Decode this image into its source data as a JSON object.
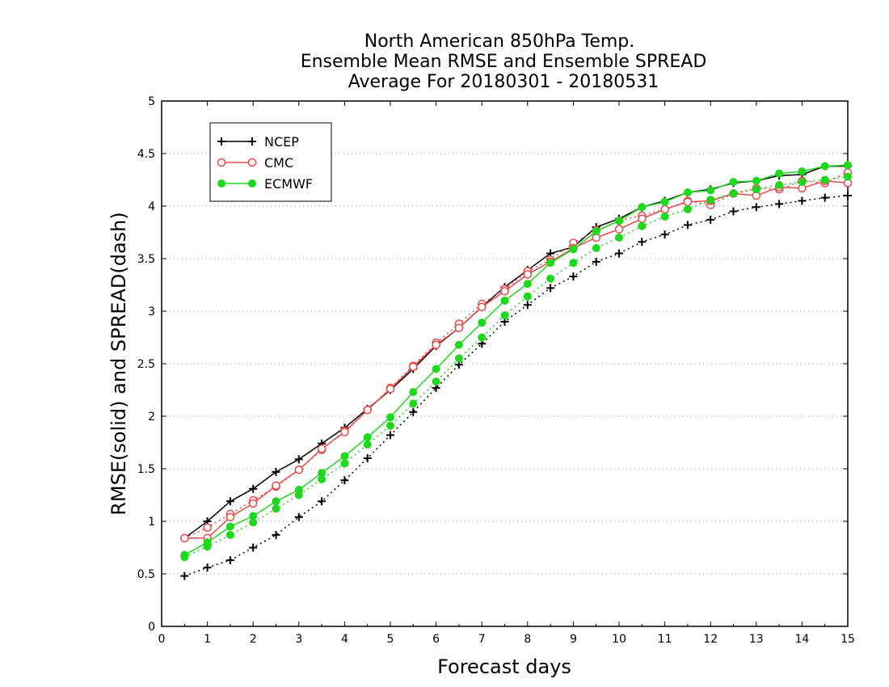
{
  "chart_data": {
    "type": "line",
    "title_lines": [
      "North American 850hPa Temp.",
      "Ensemble Mean RMSE and Ensemble SPREAD",
      "Average For 20180301 - 20180531"
    ],
    "xlabel": "Forecast days",
    "ylabel": "RMSE(solid) and SPREAD(dash)",
    "xlim": [
      0,
      15
    ],
    "ylim": [
      0,
      5
    ],
    "x_ticks": [
      "0",
      "1",
      "2",
      "3",
      "4",
      "5",
      "6",
      "7",
      "8",
      "9",
      "10",
      "11",
      "12",
      "13",
      "14",
      "15"
    ],
    "y_ticks": [
      "0",
      "0.5",
      "1",
      "1.5",
      "2",
      "2.5",
      "3",
      "3.5",
      "4",
      "4.5",
      "5"
    ],
    "grid": "horizontal dotted",
    "legend_position": "top-left",
    "x": [
      0.5,
      1,
      1.5,
      2,
      2.5,
      3,
      3.5,
      4,
      4.5,
      5,
      5.5,
      6,
      6.5,
      7,
      7.5,
      8,
      8.5,
      9,
      9.5,
      10,
      10.5,
      11,
      11.5,
      12,
      12.5,
      13,
      13.5,
      14,
      14.5,
      15
    ],
    "series": [
      {
        "name": "NCEP",
        "color": "#000000",
        "marker": "plus",
        "rmse": [
          0.84,
          1.0,
          1.19,
          1.31,
          1.47,
          1.59,
          1.74,
          1.89,
          2.07,
          2.25,
          2.45,
          2.67,
          2.84,
          3.04,
          3.23,
          3.39,
          3.55,
          3.61,
          3.8,
          3.88,
          3.99,
          4.05,
          4.13,
          4.16,
          4.22,
          4.24,
          4.29,
          4.3,
          4.38,
          4.38
        ],
        "spread": [
          0.48,
          0.56,
          0.63,
          0.75,
          0.87,
          1.04,
          1.19,
          1.39,
          1.6,
          1.82,
          2.04,
          2.27,
          2.49,
          2.69,
          2.9,
          3.06,
          3.22,
          3.33,
          3.47,
          3.55,
          3.66,
          3.73,
          3.82,
          3.87,
          3.95,
          3.99,
          4.02,
          4.05,
          4.08,
          4.1
        ]
      },
      {
        "name": "CMC",
        "color": "#e84a4a",
        "marker": "open-circle",
        "rmse": [
          0.84,
          0.84,
          1.04,
          1.17,
          1.34,
          1.49,
          1.69,
          1.85,
          2.06,
          2.26,
          2.47,
          2.68,
          2.84,
          3.04,
          3.19,
          3.35,
          3.47,
          3.6,
          3.7,
          3.78,
          3.88,
          3.97,
          4.04,
          4.05,
          4.12,
          4.1,
          4.18,
          4.17,
          4.24,
          4.22
        ],
        "spread": [
          0.84,
          0.94,
          1.07,
          1.2,
          1.33,
          1.49,
          1.68,
          1.86,
          2.06,
          2.27,
          2.48,
          2.7,
          2.88,
          3.07,
          3.21,
          3.38,
          3.49,
          3.65,
          3.77,
          3.86,
          3.91,
          3.97,
          4.05,
          4.01,
          4.12,
          4.17,
          4.16,
          4.24,
          4.22,
          4.32
        ]
      },
      {
        "name": "ECMWF",
        "color": "#1ed81e",
        "marker": "filled-circle",
        "rmse": [
          0.68,
          0.8,
          0.95,
          1.05,
          1.19,
          1.3,
          1.46,
          1.62,
          1.8,
          1.99,
          2.23,
          2.45,
          2.68,
          2.89,
          3.1,
          3.26,
          3.46,
          3.59,
          3.76,
          3.86,
          3.99,
          4.04,
          4.13,
          4.15,
          4.23,
          4.24,
          4.31,
          4.33,
          4.38,
          4.39
        ],
        "spread": [
          0.66,
          0.76,
          0.87,
          0.99,
          1.12,
          1.25,
          1.4,
          1.55,
          1.73,
          1.91,
          2.12,
          2.33,
          2.55,
          2.75,
          2.96,
          3.14,
          3.31,
          3.46,
          3.6,
          3.7,
          3.81,
          3.9,
          3.97,
          4.06,
          4.12,
          4.16,
          4.2,
          4.23,
          4.25,
          4.28
        ]
      }
    ]
  }
}
